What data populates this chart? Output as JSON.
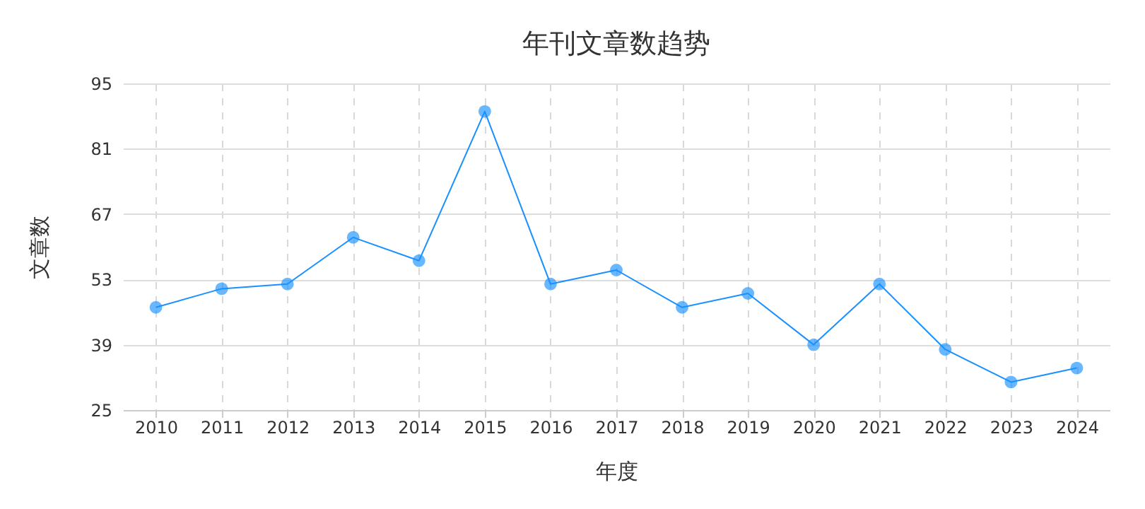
{
  "chart_data": {
    "type": "line",
    "title": "年刊文章数趋势",
    "xlabel": "年度",
    "ylabel": "文章数",
    "categories": [
      "2010",
      "2011",
      "2012",
      "2013",
      "2014",
      "2015",
      "2016",
      "2017",
      "2018",
      "2019",
      "2020",
      "2021",
      "2022",
      "2023",
      "2024"
    ],
    "series": [
      {
        "color": "#1890ff",
        "values": [
          47,
          51,
          52,
          62,
          57,
          89,
          52,
          55,
          47,
          50,
          39,
          52,
          38,
          31,
          34
        ]
      }
    ],
    "ylim": [
      25,
      95
    ],
    "yticks": [
      25,
      39,
      53,
      67,
      81,
      95
    ],
    "grid": true,
    "marker": "circle",
    "line_style": "solid"
  }
}
